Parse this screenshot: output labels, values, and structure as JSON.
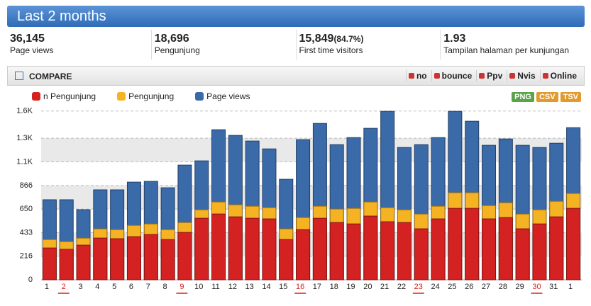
{
  "header": {
    "title": "Last 2 months"
  },
  "stats": [
    {
      "value": "36,145",
      "label": "Page views"
    },
    {
      "value": "18,696",
      "label": "Pengunjung"
    },
    {
      "value": "15,849",
      "note": "(84.7%)",
      "label": "First time visitors"
    },
    {
      "value": "1.93",
      "label": "Tampilan halaman per kunjungan"
    }
  ],
  "toolbar": {
    "compare": "COMPARE",
    "buttons": [
      "no",
      "bounce",
      "Ppv",
      "Nvis",
      "Online"
    ]
  },
  "exports": [
    "PNG",
    "CSV",
    "TSV"
  ],
  "chart_data": {
    "type": "bar",
    "categories": [
      "1",
      "2",
      "3",
      "4",
      "5",
      "6",
      "7",
      "8",
      "9",
      "10",
      "11",
      "12",
      "13",
      "14",
      "15",
      "16",
      "17",
      "18",
      "19",
      "20",
      "21",
      "22",
      "23",
      "24",
      "25",
      "26",
      "27",
      "28",
      "29",
      "30",
      "31",
      "1"
    ],
    "highlight": [
      1,
      8,
      15,
      22,
      29
    ],
    "series": [
      {
        "name": "Page views",
        "color": "#3b6aa9",
        "values": [
          735,
          735,
          644,
          826,
          826,
          897,
          904,
          845,
          1053,
          1092,
          1378,
          1326,
          1274,
          1202,
          923,
          1287,
          1436,
          1241,
          1306,
          1391,
          1547,
          1215,
          1241,
          1306,
          1547,
          1456,
          1235,
          1293,
          1235,
          1215,
          1254,
          1397
        ]
      },
      {
        "name": "Pengunjung",
        "color": "#f5b324",
        "values": [
          370,
          351,
          383,
          468,
          461,
          500,
          513,
          461,
          526,
          643,
          715,
          689,
          676,
          663,
          468,
          572,
          676,
          650,
          656,
          715,
          663,
          643,
          604,
          676,
          800,
          800,
          682,
          708,
          604,
          643,
          721,
          793
        ]
      },
      {
        "name": "n Pengunjung",
        "color": "#d42222",
        "values": [
          292,
          280,
          318,
          383,
          377,
          396,
          416,
          370,
          435,
          565,
          604,
          578,
          565,
          559,
          370,
          461,
          565,
          526,
          513,
          585,
          533,
          526,
          468,
          559,
          656,
          656,
          559,
          572,
          468,
          513,
          578,
          656
        ]
      }
    ],
    "legend_order": [
      2,
      1,
      0
    ],
    "ylim": [
      0,
      1600
    ],
    "yticks": [
      0,
      216,
      433,
      650,
      866,
      {
        "value": 1083,
        "label": "1.1K"
      },
      {
        "value": 1300,
        "label": "1.3K"
      },
      {
        "value": 1550,
        "label": "1.6K"
      }
    ],
    "grid": true
  }
}
